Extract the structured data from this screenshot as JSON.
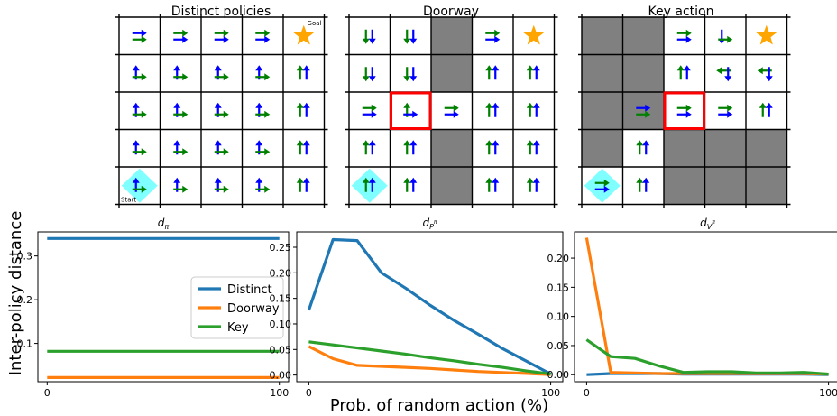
{
  "figure": {
    "shared_ylabel": "Inter-policy distance",
    "shared_xlabel": "Prob. of random action (%)",
    "colors": {
      "grid_line": "#000000",
      "wall": "#808080",
      "arrow_blue": "#0000ff",
      "arrow_green": "#008000",
      "goal": "#ffa500",
      "start": "#7fffff",
      "door": "#ff0000"
    }
  },
  "grids": [
    {
      "title": "Distinct policies",
      "start_label": "Start",
      "goal_label": "Goal",
      "size": 5,
      "walls": [],
      "door": null,
      "start": [
        0,
        4
      ],
      "goal": [
        4,
        0
      ],
      "cells": [
        [
          "BR GR",
          "GR BR",
          "GR BR",
          "GR BR",
          "STAR"
        ],
        [
          "BU GR",
          "BU GR",
          "BU GR",
          "BU GR",
          "GU BU"
        ],
        [
          "BU GR",
          "BU GR",
          "BU GR",
          "BU GR",
          "GU BU"
        ],
        [
          "BU GR",
          "BU GR",
          "BU GR",
          "BU GR",
          "GU BU"
        ],
        [
          "BU GR",
          "BU GR",
          "BU GR",
          "BU GR",
          "GU BU"
        ]
      ]
    },
    {
      "title": "Doorway",
      "size": 5,
      "walls": [
        [
          2,
          0
        ],
        [
          2,
          1
        ],
        [
          2,
          3
        ],
        [
          2,
          4
        ]
      ],
      "door": [
        1,
        2
      ],
      "start": [
        0,
        4
      ],
      "goal": [
        4,
        0
      ],
      "cells": [
        [
          "GD BD",
          "GD BD",
          "",
          "GR BR",
          "STAR"
        ],
        [
          "GD BD",
          "GD BD",
          "",
          "GU BU",
          "GU BU"
        ],
        [
          "GR BR",
          "GU BR",
          "GR BR",
          "GU BU",
          "GU BU"
        ],
        [
          "GU BU",
          "GU BU",
          "",
          "GU BU",
          "GU BU"
        ],
        [
          "GU BU",
          "GU BU",
          "",
          "GU BU",
          "GU BU"
        ]
      ]
    },
    {
      "title": "Key action",
      "size": 5,
      "walls": [
        [
          0,
          0
        ],
        [
          1,
          0
        ],
        [
          0,
          1
        ],
        [
          1,
          1
        ],
        [
          0,
          2
        ],
        [
          1,
          2
        ],
        [
          0,
          3
        ],
        [
          2,
          3
        ],
        [
          3,
          3
        ],
        [
          4,
          3
        ],
        [
          2,
          4
        ],
        [
          3,
          4
        ],
        [
          4,
          4
        ]
      ],
      "door": [
        2,
        2
      ],
      "start": [
        0,
        4
      ],
      "goal": [
        4,
        0
      ],
      "cells": [
        [
          "",
          "",
          "GR BR",
          "BD GR",
          "STAR"
        ],
        [
          "",
          "",
          "GU BU",
          "GL BD",
          "GL BD"
        ],
        [
          "",
          "BR GR",
          "GR BR",
          "GR BR",
          "GU BU"
        ],
        [
          "",
          "GU BU",
          "",
          "",
          ""
        ],
        [
          "GR BR",
          "GU BU",
          "",
          "",
          ""
        ]
      ]
    }
  ],
  "chart_data": [
    {
      "type": "line",
      "title": "d_π",
      "title_main": "d",
      "title_sub": "π",
      "ylabel": "Inter-policy distance",
      "x": [
        0,
        100
      ],
      "xlim": [
        -4,
        104
      ],
      "ylim": [
        0.0125,
        0.355
      ],
      "xticks": [
        "0",
        "100"
      ],
      "yticks": [
        "0.1",
        "0.2",
        "0.3"
      ],
      "legend": "right",
      "series": [
        {
          "name": "Distinct",
          "color": "#1f77b4",
          "values": [
            0.34,
            0.34
          ]
        },
        {
          "name": "Doorway",
          "color": "#ff7f0e",
          "values": [
            0.022,
            0.022
          ]
        },
        {
          "name": "Key",
          "color": "#2ca02c",
          "values": [
            0.082,
            0.082
          ]
        }
      ]
    },
    {
      "type": "line",
      "title": "d_P^π",
      "title_main": "d",
      "title_sub": "P",
      "title_sup": "π",
      "xlabel": "Prob. of random action (%)",
      "x": [
        0,
        10,
        20,
        30,
        40,
        50,
        60,
        70,
        80,
        90,
        100
      ],
      "xlim": [
        -5,
        105
      ],
      "ylim": [
        -0.013,
        0.28
      ],
      "xticks": [
        "0",
        "100"
      ],
      "yticks": [
        "0.00",
        "0.05",
        "0.10",
        "0.15",
        "0.20",
        "0.25"
      ],
      "series": [
        {
          "name": "Distinct",
          "color": "#1f77b4",
          "values": [
            0.127,
            0.265,
            0.263,
            0.2,
            0.17,
            0.137,
            0.107,
            0.08,
            0.052,
            0.027,
            0.002
          ]
        },
        {
          "name": "Doorway",
          "color": "#ff7f0e",
          "values": [
            0.056,
            0.032,
            0.019,
            0.017,
            0.015,
            0.013,
            0.01,
            0.007,
            0.005,
            0.003,
            0.001
          ]
        },
        {
          "name": "Key",
          "color": "#2ca02c",
          "values": [
            0.065,
            0.059,
            0.053,
            0.047,
            0.041,
            0.034,
            0.028,
            0.021,
            0.015,
            0.008,
            0.002
          ]
        }
      ]
    },
    {
      "type": "line",
      "title": "d_V^π",
      "title_main": "d",
      "title_sub": "V",
      "title_sup": "π",
      "x": [
        0,
        10,
        20,
        30,
        40,
        50,
        60,
        70,
        80,
        90,
        100
      ],
      "xlim": [
        -5,
        105
      ],
      "ylim": [
        -0.012,
        0.245
      ],
      "xticks": [
        "0",
        "100"
      ],
      "yticks": [
        "0.00",
        "0.05",
        "0.10",
        "0.15",
        "0.20"
      ],
      "series": [
        {
          "name": "Distinct",
          "color": "#1f77b4",
          "values": [
            0.0,
            0.002,
            0.002,
            0.002,
            0.001,
            0.001,
            0.001,
            0.001,
            0.001,
            0.001,
            0.0
          ]
        },
        {
          "name": "Doorway",
          "color": "#ff7f0e",
          "values": [
            0.235,
            0.004,
            0.003,
            0.002,
            0.002,
            0.002,
            0.002,
            0.002,
            0.002,
            0.002,
            0.001
          ]
        },
        {
          "name": "Key",
          "color": "#2ca02c",
          "values": [
            0.06,
            0.031,
            0.028,
            0.015,
            0.004,
            0.005,
            0.005,
            0.003,
            0.003,
            0.004,
            0.001
          ]
        }
      ]
    }
  ]
}
